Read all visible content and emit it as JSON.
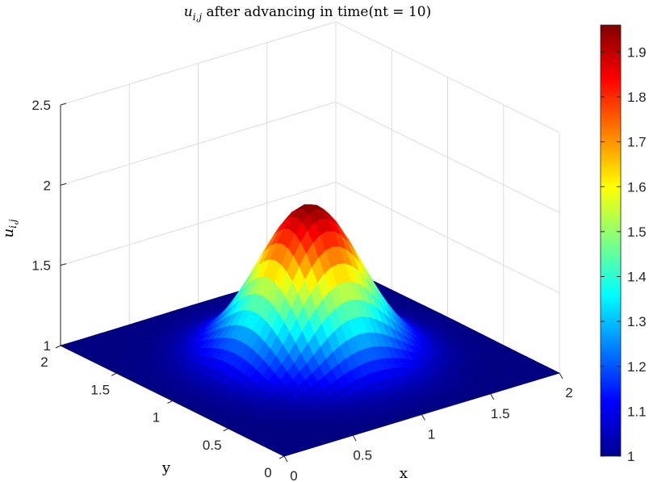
{
  "chart_data": {
    "type": "surface",
    "title_math": "u",
    "title_math_sub": "i,j",
    "title_text": " after advancing in time(nt = 10)",
    "xlabel": "x",
    "ylabel": "y",
    "zlabel_math": "u",
    "zlabel_math_sub": "i,j",
    "xlim": [
      0,
      2
    ],
    "ylim": [
      0,
      2
    ],
    "zlim": [
      1,
      2.5
    ],
    "x_ticks": [
      "0",
      "0.5",
      "1",
      "1.5",
      "2"
    ],
    "y_ticks": [
      "0",
      "0.5",
      "1",
      "1.5",
      "2"
    ],
    "z_ticks": [
      "1",
      "1.5",
      "2",
      "2.5"
    ],
    "colormap": "jet",
    "clim": [
      1,
      1.96
    ],
    "colorbar_ticks": [
      "1",
      "1.1",
      "1.2",
      "1.3",
      "1.4",
      "1.5",
      "1.6",
      "1.7",
      "1.8",
      "1.9"
    ],
    "grid": true,
    "grid_points": 41,
    "surface": {
      "baseline": 1,
      "peak_value": 1.96,
      "peak_x": 1.0,
      "peak_y": 1.0,
      "spread": 0.3
    }
  }
}
